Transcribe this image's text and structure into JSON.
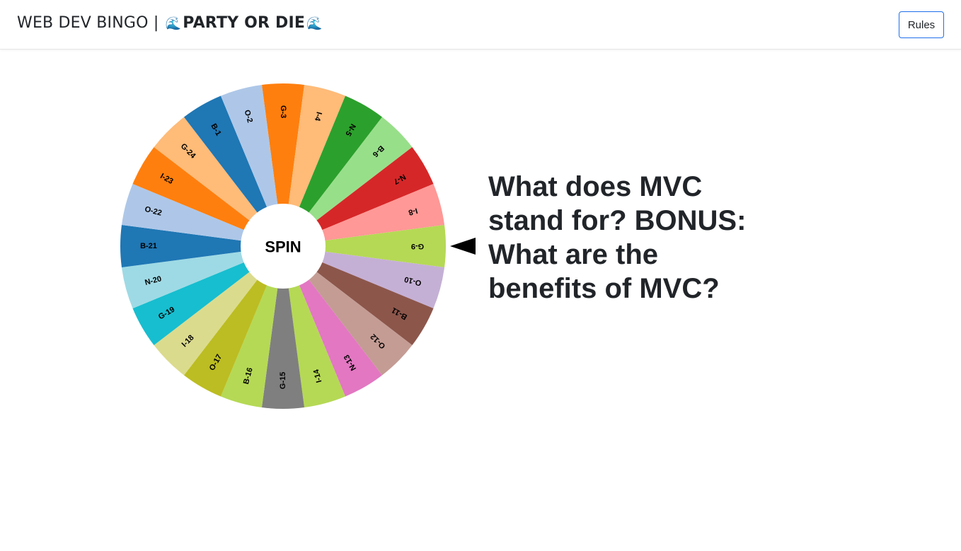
{
  "navbar": {
    "brand_prefix": "WEB DEV BINGO |",
    "wave_glyph": "🌊",
    "brand_party": "PARTY OR DIE",
    "rules_label": "Rules"
  },
  "wheel": {
    "spin_label": "SPIN",
    "segments": [
      {
        "label": "G-3",
        "color": "#ff7f0e"
      },
      {
        "label": "I-4",
        "color": "#ffbb78"
      },
      {
        "label": "N-5",
        "color": "#2ca02c"
      },
      {
        "label": "B-6",
        "color": "#98df8a"
      },
      {
        "label": "N-7",
        "color": "#d62728"
      },
      {
        "label": "I-8",
        "color": "#ff9896"
      },
      {
        "label": "G-9",
        "color": "#b5d955"
      },
      {
        "label": "O-10",
        "color": "#c5b0d5"
      },
      {
        "label": "B-11",
        "color": "#8c564b"
      },
      {
        "label": "O-12",
        "color": "#c49c94"
      },
      {
        "label": "N-13",
        "color": "#e377c2"
      },
      {
        "label": "I-14",
        "color": "#b5d955"
      },
      {
        "label": "G-15",
        "color": "#7f7f7f"
      },
      {
        "label": "B-16",
        "color": "#b5d955"
      },
      {
        "label": "O-17",
        "color": "#bcbd22"
      },
      {
        "label": "I-18",
        "color": "#dbdb8d"
      },
      {
        "label": "G-19",
        "color": "#17becf"
      },
      {
        "label": "N-20",
        "color": "#9edae5"
      },
      {
        "label": "B-21",
        "color": "#1f77b4"
      },
      {
        "label": "O-22",
        "color": "#aec7e8"
      },
      {
        "label": "I-23",
        "color": "#ff7f0e"
      },
      {
        "label": "G-24",
        "color": "#ffbb78"
      },
      {
        "label": "B-1",
        "color": "#1f77b4"
      },
      {
        "label": "O-2",
        "color": "#aec7e8"
      }
    ]
  },
  "question": {
    "text": "What does MVC stand for? BONUS: What are the benefits of MVC?"
  }
}
